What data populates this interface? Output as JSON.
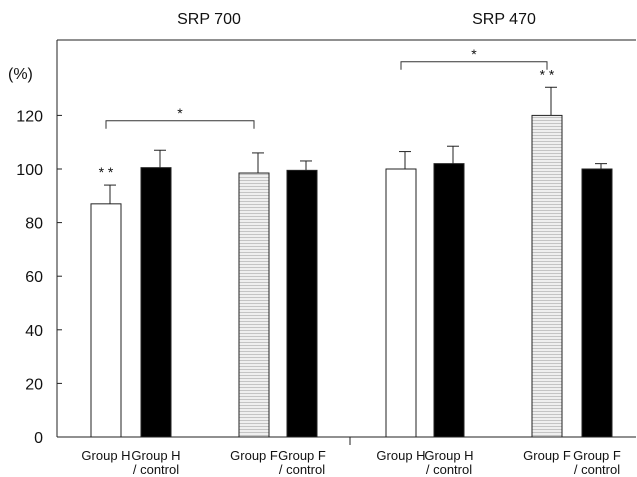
{
  "chart_data": {
    "type": "bar",
    "ylabel": "(%)",
    "ylim": [
      0,
      135
    ],
    "yticks": [
      0,
      20,
      40,
      60,
      80,
      100,
      120
    ],
    "grid": false,
    "legend": "none",
    "panels": [
      {
        "title": "SRP 700",
        "bars": [
          {
            "label": [
              "Group H"
            ],
            "value": 87,
            "error": 7,
            "fill": "#ffffff",
            "sig": "* *"
          },
          {
            "label": [
              "Group H",
              "/ control"
            ],
            "value": 100.5,
            "error": 6.5,
            "fill": "#000000",
            "sig": ""
          },
          {
            "label": [
              "Group F"
            ],
            "value": 98.5,
            "error": 7.5,
            "fill": "#e6e6e6",
            "sig": ""
          },
          {
            "label": [
              "Group F",
              "/ control"
            ],
            "value": 99.5,
            "error": 3.5,
            "fill": "#000000",
            "sig": ""
          }
        ],
        "bracket": {
          "from": 0,
          "to": 2,
          "at": 118,
          "label": "*"
        }
      },
      {
        "title": "SRP 470",
        "bars": [
          {
            "label": [
              "Group H"
            ],
            "value": 100,
            "error": 6.5,
            "fill": "#ffffff",
            "sig": ""
          },
          {
            "label": [
              "Group H",
              "/ control"
            ],
            "value": 102,
            "error": 6.5,
            "fill": "#000000",
            "sig": ""
          },
          {
            "label": [
              "Group F"
            ],
            "value": 120,
            "error": 10.5,
            "fill": "#e6e6e6",
            "sig": "* *"
          },
          {
            "label": [
              "Group F",
              "/ control"
            ],
            "value": 100,
            "error": 2,
            "fill": "#000000",
            "sig": ""
          }
        ],
        "bracket": {
          "from": 0,
          "to": 2,
          "at": 140,
          "label": "*"
        }
      }
    ]
  }
}
